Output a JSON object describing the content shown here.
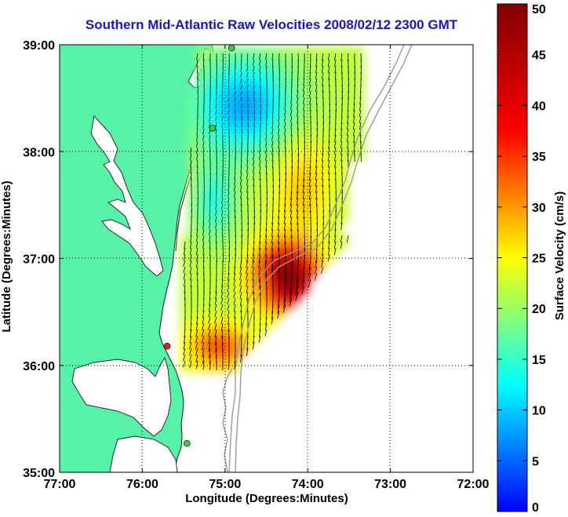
{
  "title": "Southern Mid-Atlantic Raw Velocities 2008/02/12 2300 GMT",
  "colors": {
    "land": "#55f2a8",
    "coast": "#1a1a1a",
    "bathy": "#9a9a9a",
    "station_active": "#3ec93e",
    "station_inactive": "#e02020"
  },
  "chart_data": {
    "type": "heatmap",
    "xlabel": "Longitude (Degrees:Minutes)",
    "ylabel": "Latitude (Degrees:Minutes)",
    "x_range": [
      -77,
      -72
    ],
    "y_range": [
      35,
      39
    ],
    "x_ticks": [
      {
        "value": -77,
        "label": "77:00"
      },
      {
        "value": -76,
        "label": "76:00"
      },
      {
        "value": -75,
        "label": "75:00"
      },
      {
        "value": -74,
        "label": "74:00"
      },
      {
        "value": -73,
        "label": "73:00"
      },
      {
        "value": -72,
        "label": "72:00"
      }
    ],
    "y_ticks": [
      {
        "value": 39,
        "label": "39:00"
      },
      {
        "value": 38,
        "label": "38:00"
      },
      {
        "value": 37,
        "label": "37:00"
      },
      {
        "value": 36,
        "label": "36:00"
      },
      {
        "value": 35,
        "label": "35:00"
      }
    ],
    "grid": "dotted",
    "colorbar": {
      "label": "Surface Velocity (cm/s)",
      "min": 0,
      "max": 50,
      "ticks": [
        {
          "value": 0,
          "label": "0"
        },
        {
          "value": 5,
          "label": "5"
        },
        {
          "value": 10,
          "label": "10"
        },
        {
          "value": 15,
          "label": "15"
        },
        {
          "value": 20,
          "label": "20"
        },
        {
          "value": 25,
          "label": "25"
        },
        {
          "value": 30,
          "label": "30"
        },
        {
          "value": 35,
          "label": "35"
        },
        {
          "value": 40,
          "label": "40"
        },
        {
          "value": 45,
          "label": "45"
        },
        {
          "value": 50,
          "label": "50"
        }
      ]
    },
    "stations": [
      {
        "lon": -74.92,
        "lat": 38.97,
        "status": "active"
      },
      {
        "lon": -75.15,
        "lat": 38.22,
        "status": "active"
      },
      {
        "lon": -75.7,
        "lat": 36.18,
        "status": "inactive"
      },
      {
        "lon": -75.46,
        "lat": 35.27,
        "status": "active"
      }
    ]
  }
}
